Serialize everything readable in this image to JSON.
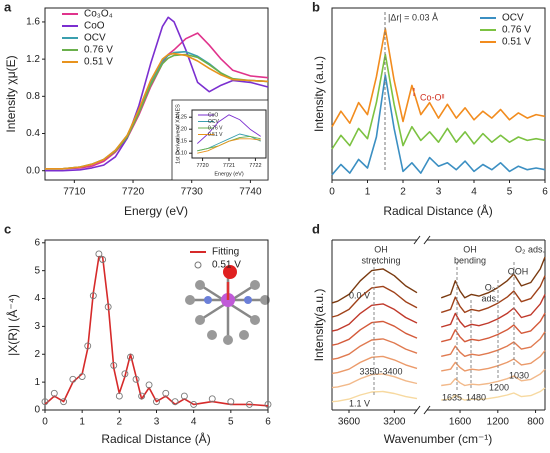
{
  "chart_data": [
    {
      "type": "line",
      "panel": "a",
      "xlabel": "Energy (eV)",
      "ylabel": "Intensity χμ(E)",
      "xlim": [
        7705,
        7743
      ],
      "xticks": [
        7710,
        7720,
        7730,
        7740
      ],
      "ylim": [
        -0.1,
        1.75
      ],
      "yticks": [
        {
          "value": 0,
          "label": "0.0"
        },
        0.4,
        0.8,
        1.2,
        1.6
      ],
      "x": [
        7705,
        7708,
        7711,
        7713,
        7715,
        7717,
        7719,
        7721,
        7723,
        7725,
        7726,
        7727,
        7729,
        7731,
        7733,
        7735,
        7737,
        7740,
        7743
      ],
      "series": [
        {
          "name": "Co₃O₄",
          "color": "#e0338c",
          "values": [
            0.02,
            0.02,
            0.03,
            0.05,
            0.1,
            0.2,
            0.35,
            0.6,
            0.9,
            1.15,
            1.25,
            1.3,
            1.42,
            1.48,
            1.35,
            1.2,
            1.08,
            1.02,
            1.0
          ]
        },
        {
          "name": "CoO",
          "color": "#7b2fd0",
          "values": [
            0.0,
            0.0,
            0.01,
            0.03,
            0.06,
            0.15,
            0.35,
            0.7,
            1.15,
            1.55,
            1.65,
            1.6,
            1.3,
            0.95,
            0.85,
            0.92,
            0.97,
            0.95,
            0.9
          ]
        },
        {
          "name": "OCV",
          "color": "#3a9fae",
          "values": [
            0.02,
            0.02,
            0.04,
            0.07,
            0.12,
            0.22,
            0.38,
            0.65,
            0.95,
            1.18,
            1.24,
            1.27,
            1.28,
            1.23,
            1.15,
            1.05,
            0.98,
            0.97,
            0.96
          ]
        },
        {
          "name": "0.76 V",
          "color": "#6ab04c",
          "values": [
            0.02,
            0.02,
            0.04,
            0.07,
            0.12,
            0.21,
            0.36,
            0.62,
            0.92,
            1.15,
            1.21,
            1.24,
            1.25,
            1.22,
            1.14,
            1.05,
            0.99,
            0.97,
            0.96
          ]
        },
        {
          "name": "0.51 V",
          "color": "#e8931d",
          "values": [
            0.02,
            0.02,
            0.04,
            0.07,
            0.12,
            0.22,
            0.38,
            0.66,
            0.97,
            1.2,
            1.25,
            1.26,
            1.24,
            1.18,
            1.1,
            1.03,
            0.98,
            0.97,
            0.96
          ]
        }
      ]
    },
    {
      "type": "line",
      "xlabel": "Energy (eV)",
      "ylabel": "1st Derivative of XANES",
      "xlim": [
        7719.6,
        7722.4
      ],
      "xticks": [
        7720,
        7721,
        7722
      ],
      "ylim": [
        0.08,
        0.28
      ],
      "yticks": [
        {
          "value": 0.1,
          "label": "0.10"
        },
        0.15,
        {
          "value": 0.2,
          "label": "0.20"
        },
        0.25
      ],
      "x": [
        7719.8,
        7720.2,
        7720.6,
        7721.0,
        7721.4,
        7721.8,
        7722.2
      ],
      "series": [
        {
          "name": "CoO",
          "color": "#7b2fd0",
          "values": [
            0.14,
            0.18,
            0.23,
            0.26,
            0.24,
            0.2,
            0.17
          ]
        },
        {
          "name": "OCV",
          "color": "#3a9fae",
          "values": [
            0.11,
            0.12,
            0.14,
            0.16,
            0.18,
            0.17,
            0.15
          ]
        },
        {
          "name": "0.76 V",
          "color": "#6ab04c",
          "values": [
            0.11,
            0.12,
            0.13,
            0.15,
            0.165,
            0.17,
            0.16
          ]
        },
        {
          "name": "0.51 V",
          "color": "#e8931d",
          "values": [
            0.1,
            0.11,
            0.13,
            0.15,
            0.16,
            0.16,
            0.155
          ]
        }
      ]
    },
    {
      "type": "line",
      "panel": "b",
      "xlabel": "Radical Distance (Å)",
      "ylabel": "Intensity (a.u.)",
      "annotations": [
        "|Δr| = 0.03 Å",
        "Co-Oᴵᴵ"
      ],
      "xlim": [
        0,
        6
      ],
      "xticks": [
        0,
        1,
        2,
        3,
        4,
        5,
        6
      ],
      "ylim": [
        0,
        10
      ],
      "x": [
        0,
        0.25,
        0.5,
        0.75,
        1.0,
        1.25,
        1.5,
        1.75,
        2.0,
        2.25,
        2.5,
        2.75,
        3.0,
        3.25,
        3.5,
        3.75,
        4.0,
        4.25,
        4.5,
        4.75,
        5.0,
        5.25,
        5.5,
        5.75,
        6.0
      ],
      "series": [
        {
          "name": "OCV",
          "color": "#3b8fc2",
          "values": [
            0.3,
            0.9,
            0.4,
            1.2,
            0.7,
            2.5,
            6.1,
            3.0,
            0.5,
            1.0,
            0.4,
            1.3,
            0.8,
            1.0,
            0.6,
            1.1,
            0.5,
            0.9,
            0.6,
            1.0,
            0.5,
            0.8,
            0.6,
            0.7,
            0.6
          ]
        },
        {
          "name": "0.76 V",
          "color": "#7cc242",
          "values": [
            1.8,
            2.6,
            2.0,
            3.0,
            2.4,
            4.5,
            7.3,
            4.4,
            2.0,
            3.1,
            2.3,
            2.8,
            2.2,
            3.0,
            2.2,
            2.8,
            2.1,
            2.7,
            2.2,
            2.6,
            2.2,
            2.5,
            2.3,
            2.4,
            2.3
          ]
        },
        {
          "name": "0.51 V",
          "color": "#f28c1e",
          "values": [
            3.1,
            4.0,
            3.3,
            4.5,
            3.8,
            6.0,
            8.8,
            5.8,
            3.4,
            5.5,
            3.8,
            4.5,
            3.6,
            4.4,
            3.6,
            4.2,
            3.5,
            4.0,
            3.6,
            4.1,
            3.5,
            3.9,
            3.6,
            3.8,
            3.7
          ]
        }
      ]
    },
    {
      "type": "line",
      "panel": "c",
      "xlabel": "Radical Distance (Å)",
      "ylabel": "|X(R)| (Å⁻⁴)",
      "xlim": [
        0,
        6
      ],
      "xticks": [
        0,
        1,
        2,
        3,
        4,
        5,
        6
      ],
      "ylim": [
        0,
        6.1
      ],
      "yticks": [
        0,
        1,
        2,
        3,
        4,
        5,
        6
      ],
      "x": [
        0,
        0.25,
        0.5,
        0.75,
        1.0,
        1.15,
        1.3,
        1.45,
        1.55,
        1.7,
        1.85,
        2.0,
        2.15,
        2.3,
        2.45,
        2.6,
        2.8,
        3.0,
        3.25,
        3.5,
        3.75,
        4.0,
        4.5,
        5.0,
        5.5,
        6.0
      ],
      "series": [
        {
          "name": "Fitting",
          "color": "#d62a2a",
          "values": [
            0.2,
            0.5,
            0.3,
            1.0,
            1.3,
            2.2,
            4.2,
            5.5,
            5.5,
            3.8,
            1.5,
            0.6,
            1.2,
            2.0,
            1.2,
            0.4,
            0.8,
            0.3,
            0.5,
            0.2,
            0.4,
            0.2,
            0.3,
            0.2,
            0.2,
            0.15
          ]
        },
        {
          "name": "0.51 V",
          "color": "#777777",
          "marker": "circle",
          "values": [
            0.3,
            0.6,
            0.3,
            1.1,
            1.2,
            2.3,
            4.1,
            5.6,
            5.4,
            3.7,
            1.6,
            0.5,
            1.3,
            1.9,
            1.1,
            0.5,
            0.9,
            0.3,
            0.6,
            0.3,
            0.5,
            0.2,
            0.4,
            0.3,
            0.2,
            0.2
          ]
        }
      ]
    },
    {
      "type": "broken-line",
      "panel": "d",
      "xlabel": "Wavenumber (cm⁻¹)",
      "ylabel": "Intensity(a.u.)",
      "ylim": [
        0,
        10
      ],
      "annotations": [
        "0.0 V",
        "1.1 V",
        [
          "OH",
          "stretching"
        ],
        "3350-3400",
        [
          "OH",
          "bending"
        ],
        [
          "O₂",
          "ads."
        ],
        "OOH",
        "O₂ ads.",
        "1635",
        "1480",
        "1200",
        "1030"
      ],
      "colors": [
        "#7a3a10",
        "#a0421a",
        "#c0392b",
        "#d45a3a",
        "#e07a50",
        "#eb9a6a",
        "#f2b98a",
        "#f7d9a0"
      ],
      "segments": [
        {
          "xlim": [
            3750,
            3000
          ],
          "xticks": [
            3600,
            3200
          ],
          "x": [
            3750,
            3700,
            3600,
            3500,
            3400,
            3300,
            3200,
            3100,
            3000
          ],
          "series": [
            {
              "values": [
                6.3,
                6.4,
                6.8,
                7.6,
                8.2,
                8.3,
                7.9,
                7.3,
                6.9
              ]
            },
            {
              "values": [
                5.47,
                5.56,
                5.92,
                6.64,
                7.18,
                7.27,
                6.91,
                6.37,
                6.01
              ]
            },
            {
              "values": [
                4.64,
                4.72,
                5.04,
                5.68,
                6.16,
                6.24,
                5.92,
                5.44,
                5.12
              ]
            },
            {
              "values": [
                3.81,
                3.88,
                4.16,
                4.72,
                5.14,
                5.21,
                4.93,
                4.51,
                4.23
              ]
            },
            {
              "values": [
                2.98,
                3.04,
                3.28,
                3.76,
                4.12,
                4.18,
                3.94,
                3.58,
                3.34
              ]
            },
            {
              "values": [
                2.15,
                2.2,
                2.4,
                2.8,
                3.1,
                3.15,
                2.95,
                2.65,
                2.45
              ]
            },
            {
              "values": [
                1.32,
                1.36,
                1.52,
                1.84,
                2.08,
                2.12,
                1.96,
                1.72,
                1.56
              ]
            },
            {
              "values": [
                0.49,
                0.52,
                0.64,
                0.88,
                1.06,
                1.09,
                0.97,
                0.79,
                0.67
              ]
            }
          ]
        },
        {
          "xlim": [
            1950,
            700
          ],
          "xticks": [
            1600,
            1200,
            800
          ],
          "x": [
            1800,
            1700,
            1650,
            1600,
            1550,
            1480,
            1400,
            1300,
            1200,
            1100,
            1030,
            950,
            850,
            750,
            700
          ],
          "series": [
            {
              "values": [
                6.6,
                6.8,
                7.6,
                7.0,
                6.6,
                6.8,
                6.7,
                6.9,
                7.2,
                7.6,
                8.0,
                7.3,
                7.5,
                8.3,
                9.0
              ]
            },
            {
              "values": [
                5.74,
                5.92,
                6.64,
                6.1,
                5.74,
                5.92,
                5.83,
                6.01,
                6.28,
                6.64,
                7.0,
                6.37,
                6.55,
                7.27,
                7.9
              ]
            },
            {
              "values": [
                4.88,
                5.04,
                5.68,
                5.2,
                4.88,
                5.04,
                4.96,
                5.12,
                5.36,
                5.68,
                6.0,
                5.44,
                5.6,
                6.24,
                6.8
              ]
            },
            {
              "values": [
                4.02,
                4.16,
                4.72,
                4.3,
                4.02,
                4.16,
                4.09,
                4.23,
                4.44,
                4.72,
                5.0,
                4.51,
                4.65,
                5.21,
                5.7
              ]
            },
            {
              "values": [
                3.16,
                3.28,
                3.76,
                3.4,
                3.16,
                3.28,
                3.22,
                3.34,
                3.52,
                3.76,
                4.0,
                3.58,
                3.7,
                4.18,
                4.6
              ]
            },
            {
              "values": [
                2.3,
                2.4,
                2.8,
                2.5,
                2.3,
                2.4,
                2.35,
                2.45,
                2.6,
                2.8,
                3.0,
                2.65,
                2.75,
                3.15,
                3.5
              ]
            },
            {
              "values": [
                1.44,
                1.52,
                1.84,
                1.6,
                1.44,
                1.52,
                1.48,
                1.56,
                1.68,
                1.84,
                2.0,
                1.72,
                1.8,
                2.12,
                2.4
              ]
            },
            {
              "values": [
                0.58,
                0.64,
                0.88,
                0.7,
                0.58,
                0.64,
                0.61,
                0.67,
                0.76,
                0.88,
                1.0,
                0.79,
                0.85,
                1.09,
                1.3
              ]
            }
          ]
        }
      ]
    }
  ]
}
